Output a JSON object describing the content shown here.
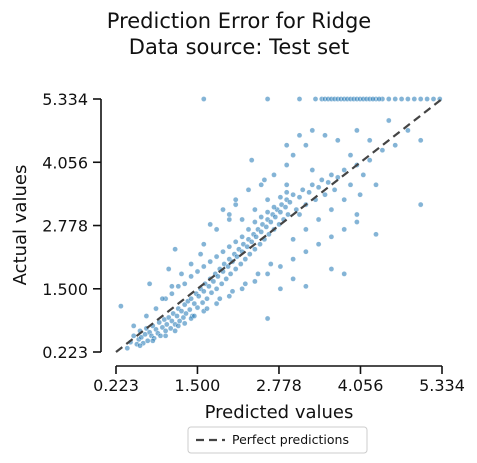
{
  "chart_data": {
    "type": "scatter",
    "title": [
      "Prediction Error for Ridge",
      "Data source: Test set"
    ],
    "xlabel": "Predicted values",
    "ylabel": "Actual values",
    "xlim": [
      0.223,
      5.334
    ],
    "ylim": [
      0.223,
      5.334
    ],
    "xticks": [
      "0.223",
      "1.500",
      "2.778",
      "4.056",
      "5.334"
    ],
    "yticks": [
      "0.223",
      "1.500",
      "2.778",
      "4.056",
      "5.334"
    ],
    "legend": {
      "placement": "bottom-center",
      "entries": [
        "Perfect predictions"
      ]
    },
    "grid": false,
    "colors": {
      "points": "#1f77b4",
      "diagonal": "#444444"
    },
    "reference_line": {
      "name": "Perfect predictions",
      "x": [
        0.223,
        5.334
      ],
      "y": [
        0.223,
        5.334
      ]
    },
    "series": [
      {
        "name": "",
        "points": [
          [
            0.4,
            0.3
          ],
          [
            0.45,
            0.42
          ],
          [
            0.5,
            0.55
          ],
          [
            0.55,
            0.38
          ],
          [
            0.58,
            0.48
          ],
          [
            0.6,
            0.65
          ],
          [
            0.62,
            0.52
          ],
          [
            0.65,
            0.4
          ],
          [
            0.68,
            0.58
          ],
          [
            0.7,
            0.7
          ],
          [
            0.72,
            0.45
          ],
          [
            0.75,
            0.62
          ],
          [
            0.78,
            0.55
          ],
          [
            0.8,
            0.75
          ],
          [
            0.82,
            0.5
          ],
          [
            0.85,
            0.68
          ],
          [
            0.88,
            0.6
          ],
          [
            0.9,
            0.82
          ],
          [
            0.92,
            0.55
          ],
          [
            0.95,
            0.72
          ],
          [
            0.98,
            0.88
          ],
          [
            1.0,
            0.65
          ],
          [
            1.02,
            0.78
          ],
          [
            1.05,
            0.92
          ],
          [
            1.08,
            0.7
          ],
          [
            1.1,
            0.85
          ],
          [
            1.12,
            1.0
          ],
          [
            1.15,
            0.78
          ],
          [
            1.18,
            0.95
          ],
          [
            1.2,
            1.1
          ],
          [
            1.22,
            0.85
          ],
          [
            1.25,
            1.05
          ],
          [
            1.28,
            0.92
          ],
          [
            1.3,
            1.18
          ],
          [
            1.32,
            1.0
          ],
          [
            1.35,
            1.25
          ],
          [
            1.38,
            1.08
          ],
          [
            1.4,
            1.3
          ],
          [
            1.42,
            0.95
          ],
          [
            1.45,
            1.2
          ],
          [
            1.48,
            1.4
          ],
          [
            1.5,
            1.12
          ],
          [
            1.52,
            1.35
          ],
          [
            1.55,
            1.5
          ],
          [
            1.58,
            1.22
          ],
          [
            1.6,
            1.45
          ],
          [
            1.62,
            1.6
          ],
          [
            1.65,
            1.3
          ],
          [
            1.68,
            1.55
          ],
          [
            1.7,
            1.7
          ],
          [
            1.72,
            1.42
          ],
          [
            1.75,
            1.65
          ],
          [
            1.78,
            1.8
          ],
          [
            1.8,
            1.5
          ],
          [
            1.82,
            1.75
          ],
          [
            1.85,
            1.9
          ],
          [
            1.88,
            1.6
          ],
          [
            1.9,
            1.85
          ],
          [
            1.92,
            2.0
          ],
          [
            1.95,
            1.7
          ],
          [
            1.98,
            1.95
          ],
          [
            2.0,
            2.1
          ],
          [
            2.02,
            1.8
          ],
          [
            2.05,
            2.05
          ],
          [
            2.08,
            2.2
          ],
          [
            2.1,
            1.9
          ],
          [
            2.12,
            2.15
          ],
          [
            2.15,
            2.3
          ],
          [
            2.18,
            2.0
          ],
          [
            2.2,
            2.25
          ],
          [
            2.22,
            2.4
          ],
          [
            2.25,
            2.1
          ],
          [
            2.28,
            2.35
          ],
          [
            2.3,
            2.5
          ],
          [
            2.32,
            2.2
          ],
          [
            2.35,
            2.45
          ],
          [
            2.38,
            2.6
          ],
          [
            2.4,
            2.3
          ],
          [
            2.42,
            2.55
          ],
          [
            2.45,
            2.7
          ],
          [
            2.48,
            2.4
          ],
          [
            2.5,
            2.65
          ],
          [
            2.52,
            2.8
          ],
          [
            2.55,
            2.5
          ],
          [
            2.58,
            2.75
          ],
          [
            2.6,
            2.9
          ],
          [
            2.62,
            2.6
          ],
          [
            2.65,
            2.85
          ],
          [
            2.68,
            3.0
          ],
          [
            2.7,
            2.7
          ],
          [
            2.72,
            2.95
          ],
          [
            2.75,
            3.1
          ],
          [
            2.78,
            2.8
          ],
          [
            2.8,
            3.05
          ],
          [
            2.82,
            3.2
          ],
          [
            2.85,
            2.9
          ],
          [
            2.88,
            3.15
          ],
          [
            2.9,
            3.3
          ],
          [
            2.92,
            3.0
          ],
          [
            2.95,
            3.25
          ],
          [
            3.0,
            3.4
          ],
          [
            3.05,
            3.1
          ],
          [
            3.1,
            3.35
          ],
          [
            3.15,
            3.5
          ],
          [
            3.2,
            3.2
          ],
          [
            3.25,
            3.45
          ],
          [
            3.3,
            3.6
          ],
          [
            3.35,
            3.3
          ],
          [
            3.4,
            3.55
          ],
          [
            3.45,
            3.7
          ],
          [
            3.5,
            3.4
          ],
          [
            3.55,
            3.65
          ],
          [
            3.6,
            3.8
          ],
          [
            3.65,
            3.5
          ],
          [
            3.7,
            3.75
          ],
          [
            3.8,
            3.9
          ],
          [
            3.9,
            3.6
          ],
          [
            4.0,
            4.0
          ],
          [
            4.1,
            3.8
          ],
          [
            4.2,
            4.1
          ],
          [
            1.0,
            1.3
          ],
          [
            1.1,
            1.4
          ],
          [
            1.2,
            1.55
          ],
          [
            1.3,
            1.6
          ],
          [
            1.4,
            1.75
          ],
          [
            1.5,
            1.85
          ],
          [
            1.6,
            1.95
          ],
          [
            1.7,
            2.05
          ],
          [
            1.8,
            2.15
          ],
          [
            1.9,
            2.25
          ],
          [
            2.0,
            2.35
          ],
          [
            2.1,
            2.45
          ],
          [
            2.2,
            2.55
          ],
          [
            2.3,
            2.7
          ],
          [
            2.4,
            2.85
          ],
          [
            2.5,
            2.95
          ],
          [
            2.6,
            3.05
          ],
          [
            2.7,
            3.15
          ],
          [
            2.8,
            3.35
          ],
          [
            2.9,
            3.45
          ],
          [
            1.2,
            0.75
          ],
          [
            1.4,
            0.9
          ],
          [
            1.6,
            1.05
          ],
          [
            1.8,
            1.2
          ],
          [
            2.0,
            1.35
          ],
          [
            2.2,
            1.5
          ],
          [
            2.4,
            1.65
          ],
          [
            2.6,
            1.8
          ],
          [
            2.8,
            1.95
          ],
          [
            3.0,
            2.1
          ],
          [
            3.2,
            2.25
          ],
          [
            3.4,
            2.4
          ],
          [
            3.6,
            2.55
          ],
          [
            3.8,
            2.7
          ],
          [
            4.0,
            2.85
          ],
          [
            3.0,
            2.5
          ],
          [
            3.2,
            2.7
          ],
          [
            3.4,
            2.9
          ],
          [
            3.6,
            3.1
          ],
          [
            3.8,
            3.3
          ],
          [
            1.6,
            2.4
          ],
          [
            1.8,
            2.7
          ],
          [
            2.0,
            2.9
          ],
          [
            2.1,
            3.2
          ],
          [
            2.3,
            3.5
          ],
          [
            2.5,
            3.6
          ],
          [
            2.7,
            3.8
          ],
          [
            2.9,
            4.0
          ],
          [
            3.0,
            4.2
          ],
          [
            3.2,
            4.4
          ],
          [
            3.5,
            4.6
          ],
          [
            3.7,
            4.5
          ],
          [
            4.0,
            4.7
          ],
          [
            4.2,
            4.5
          ],
          [
            4.4,
            4.3
          ],
          [
            3.9,
            4.2
          ],
          [
            3.3,
            3.9
          ],
          [
            2.6,
            3.3
          ],
          [
            2.4,
            3.1
          ],
          [
            2.2,
            2.9
          ],
          [
            0.5,
            0.75
          ],
          [
            0.7,
            0.95
          ],
          [
            0.85,
            1.1
          ],
          [
            0.95,
            1.3
          ],
          [
            1.1,
            1.55
          ],
          [
            1.25,
            1.8
          ],
          [
            1.4,
            2.0
          ],
          [
            1.55,
            2.2
          ],
          [
            0.6,
            0.35
          ],
          [
            0.8,
            0.45
          ],
          [
            1.0,
            0.55
          ],
          [
            1.15,
            0.65
          ],
          [
            1.3,
            0.8
          ],
          [
            1.45,
            0.95
          ],
          [
            1.65,
            1.1
          ],
          [
            1.85,
            1.3
          ],
          [
            2.05,
            1.45
          ],
          [
            2.25,
            1.6
          ],
          [
            2.45,
            1.8
          ],
          [
            2.65,
            2.0
          ],
          [
            0.3,
            1.15
          ],
          [
            0.75,
            1.6
          ],
          [
            1.05,
            1.9
          ],
          [
            1.15,
            2.3
          ],
          [
            1.7,
            2.8
          ],
          [
            2.0,
            3.0
          ],
          [
            2.1,
            3.3
          ],
          [
            1.9,
            3.1
          ],
          [
            2.35,
            4.1
          ],
          [
            2.55,
            3.7
          ],
          [
            3.1,
            4.6
          ],
          [
            3.3,
            4.7
          ],
          [
            2.9,
            4.4
          ],
          [
            4.5,
            4.9
          ],
          [
            4.6,
            4.4
          ],
          [
            4.8,
            4.7
          ],
          [
            4.3,
            3.6
          ],
          [
            4.05,
            3.4
          ],
          [
            5.0,
            4.5
          ],
          [
            3.8,
            1.8
          ],
          [
            3.6,
            1.9
          ],
          [
            2.6,
            0.9
          ],
          [
            3.2,
            1.55
          ],
          [
            3.0,
            1.7
          ],
          [
            2.8,
            1.5
          ],
          [
            4.0,
            3.0
          ],
          [
            4.3,
            2.6
          ],
          [
            5.0,
            3.2
          ],
          [
            2.9,
            3.6
          ],
          [
            3.1,
            3.0
          ],
          [
            1.6,
            5.334
          ],
          [
            2.6,
            5.334
          ],
          [
            3.1,
            5.334
          ],
          [
            3.35,
            5.334
          ],
          [
            3.45,
            5.334
          ],
          [
            3.5,
            5.334
          ],
          [
            3.55,
            5.334
          ],
          [
            3.6,
            5.334
          ],
          [
            3.65,
            5.334
          ],
          [
            3.7,
            5.334
          ],
          [
            3.75,
            5.334
          ],
          [
            3.8,
            5.334
          ],
          [
            3.85,
            5.334
          ],
          [
            3.9,
            5.334
          ],
          [
            3.95,
            5.334
          ],
          [
            4.0,
            5.334
          ],
          [
            4.05,
            5.334
          ],
          [
            4.1,
            5.334
          ],
          [
            4.15,
            5.334
          ],
          [
            4.2,
            5.334
          ],
          [
            4.3,
            5.334
          ],
          [
            4.4,
            5.334
          ],
          [
            4.5,
            5.334
          ],
          [
            4.6,
            5.334
          ],
          [
            4.7,
            5.334
          ],
          [
            4.8,
            5.334
          ],
          [
            4.9,
            5.334
          ],
          [
            5.0,
            5.334
          ],
          [
            5.1,
            5.334
          ],
          [
            5.2,
            5.334
          ],
          [
            5.3,
            5.334
          ],
          [
            4.25,
            5.334
          ],
          [
            4.35,
            5.334
          ]
        ]
      }
    ]
  }
}
